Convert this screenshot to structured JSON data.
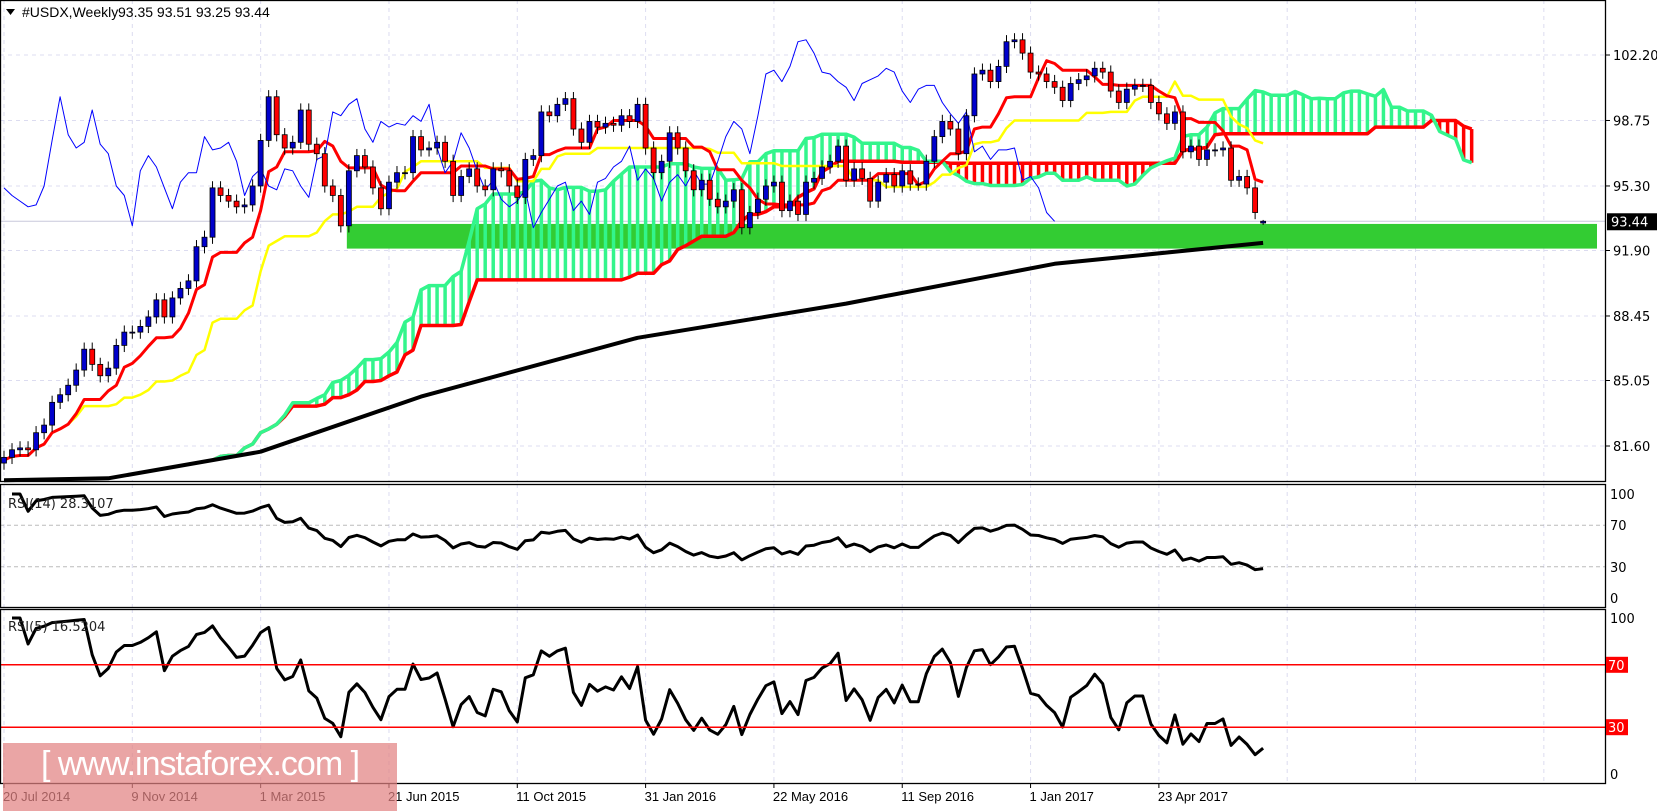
{
  "header": {
    "symbol": "#USDX,Weekly",
    "ohlc": "93.35 93.51 93.25 93.44",
    "menu_icon": "triangle-down-icon"
  },
  "watermark": "[ www.instaforex.com ]",
  "colors": {
    "bull_candle": "#0000cc",
    "bear_candle": "#ff0000",
    "tenkan": "#ff0000",
    "kijun": "#ffff00",
    "chikou": "#0000ff",
    "cloud_up": "#33f58c",
    "cloud_down": "#ff0000",
    "moving_average": "#000000",
    "support_zone": "#33cc33",
    "rsi_line": "#000000",
    "rsi_levels": "#ff0000",
    "grid": "#dcdcf0"
  },
  "chart_data": [
    {
      "type": "candlestick",
      "symbol": "#USDX",
      "timeframe": "Weekly",
      "start_date": "2014-07-20",
      "closes": [
        81.0,
        81.4,
        81.5,
        81.4,
        82.3,
        82.7,
        83.9,
        84.3,
        84.8,
        85.6,
        86.7,
        85.9,
        85.3,
        85.7,
        86.9,
        87.6,
        87.6,
        87.9,
        88.4,
        89.3,
        88.4,
        89.4,
        89.9,
        90.3,
        92.1,
        92.6,
        95.2,
        94.8,
        94.5,
        94.2,
        94.3,
        95.3,
        97.7,
        100.0,
        98.0,
        97.3,
        97.6,
        99.3,
        97.5,
        97.0,
        95.3,
        94.8,
        93.2,
        96.1,
        96.9,
        96.3,
        95.2,
        94.1,
        95.5,
        96.0,
        96.0,
        97.9,
        97.2,
        97.3,
        97.6,
        96.6,
        94.8,
        95.8,
        96.2,
        95.3,
        95.1,
        96.2,
        96.1,
        95.3,
        94.7,
        96.7,
        96.9,
        99.2,
        99.0,
        99.6,
        99.9,
        98.3,
        97.6,
        98.7,
        98.4,
        98.6,
        98.5,
        99.0,
        98.7,
        99.6,
        97.3,
        96.0,
        96.6,
        98.1,
        97.3,
        96.1,
        95.1,
        95.6,
        94.6,
        94.2,
        94.5,
        95.1,
        93.1,
        93.9,
        94.6,
        95.3,
        95.5,
        94.0,
        94.5,
        93.8,
        95.5,
        95.7,
        96.3,
        96.6,
        97.4,
        95.6,
        96.2,
        95.7,
        94.5,
        95.5,
        95.9,
        95.3,
        96.1,
        95.4,
        95.4,
        96.6,
        97.9,
        98.7,
        98.3,
        97.0,
        99.0,
        101.2,
        101.4,
        100.8,
        101.6,
        102.9,
        103.0,
        102.3,
        101.3,
        101.2,
        100.8,
        100.5,
        99.8,
        100.7,
        100.9,
        101.1,
        101.5,
        101.3,
        100.3,
        99.7,
        100.4,
        100.6,
        100.6,
        99.7,
        99.1,
        98.6,
        99.2,
        97.1,
        97.4,
        96.7,
        97.2,
        97.2,
        97.3,
        95.6,
        95.8,
        95.2,
        93.9,
        93.44
      ],
      "last_bar": {
        "open": 93.35,
        "high": 93.51,
        "low": 93.25,
        "close": 93.44
      },
      "current_price_label": "93.44",
      "x_tick_labels": [
        "20 Jul 2014",
        "9 Nov 2014",
        "1 Mar 2015",
        "21 Jun 2015",
        "11 Oct 2015",
        "31 Jan 2016",
        "22 May 2016",
        "11 Sep 2016",
        "1 Jan 2017",
        "23 Apr 2017"
      ],
      "y_tick_labels": [
        "102.20",
        "98.75",
        "95.30",
        "91.90",
        "88.45",
        "85.05",
        "81.60"
      ],
      "ylim": [
        79.2,
        104.1
      ],
      "indicators": {
        "ichimoku": {
          "tenkan": 9,
          "kijun": 26,
          "senkou_b": 52
        },
        "moving_average": [
          {
            "date": "2014-07-20",
            "value": 79.8
          },
          {
            "date": "2014-10-19",
            "value": 79.9
          },
          {
            "date": "2015-03-01",
            "value": 81.3
          },
          {
            "date": "2015-07-19",
            "value": 84.2
          },
          {
            "date": "2016-01-24",
            "value": 87.3
          },
          {
            "date": "2016-07-24",
            "value": 89.1
          },
          {
            "date": "2017-01-22",
            "value": 91.2
          },
          {
            "date": "2017-07-23",
            "value": 92.3
          }
        ],
        "support_zone": {
          "from_date": "2015-05-10",
          "low": 92.0,
          "high": 93.3
        }
      },
      "grid": true
    },
    {
      "type": "line",
      "label": "RSI(14) 28.3107",
      "period": 14,
      "last_value": 28.3107,
      "ylim": [
        0,
        100
      ],
      "y_tick_labels": [
        "100",
        "70",
        "30",
        "0"
      ],
      "levels": [
        70,
        30
      ]
    },
    {
      "type": "line",
      "label": "RSI(5) 16.5204",
      "period": 5,
      "last_value": 16.5204,
      "ylim": [
        0,
        100
      ],
      "y_tick_labels": [
        "100",
        "0"
      ],
      "level_labels": [
        "70",
        "30"
      ],
      "levels": [
        70,
        30
      ]
    }
  ]
}
